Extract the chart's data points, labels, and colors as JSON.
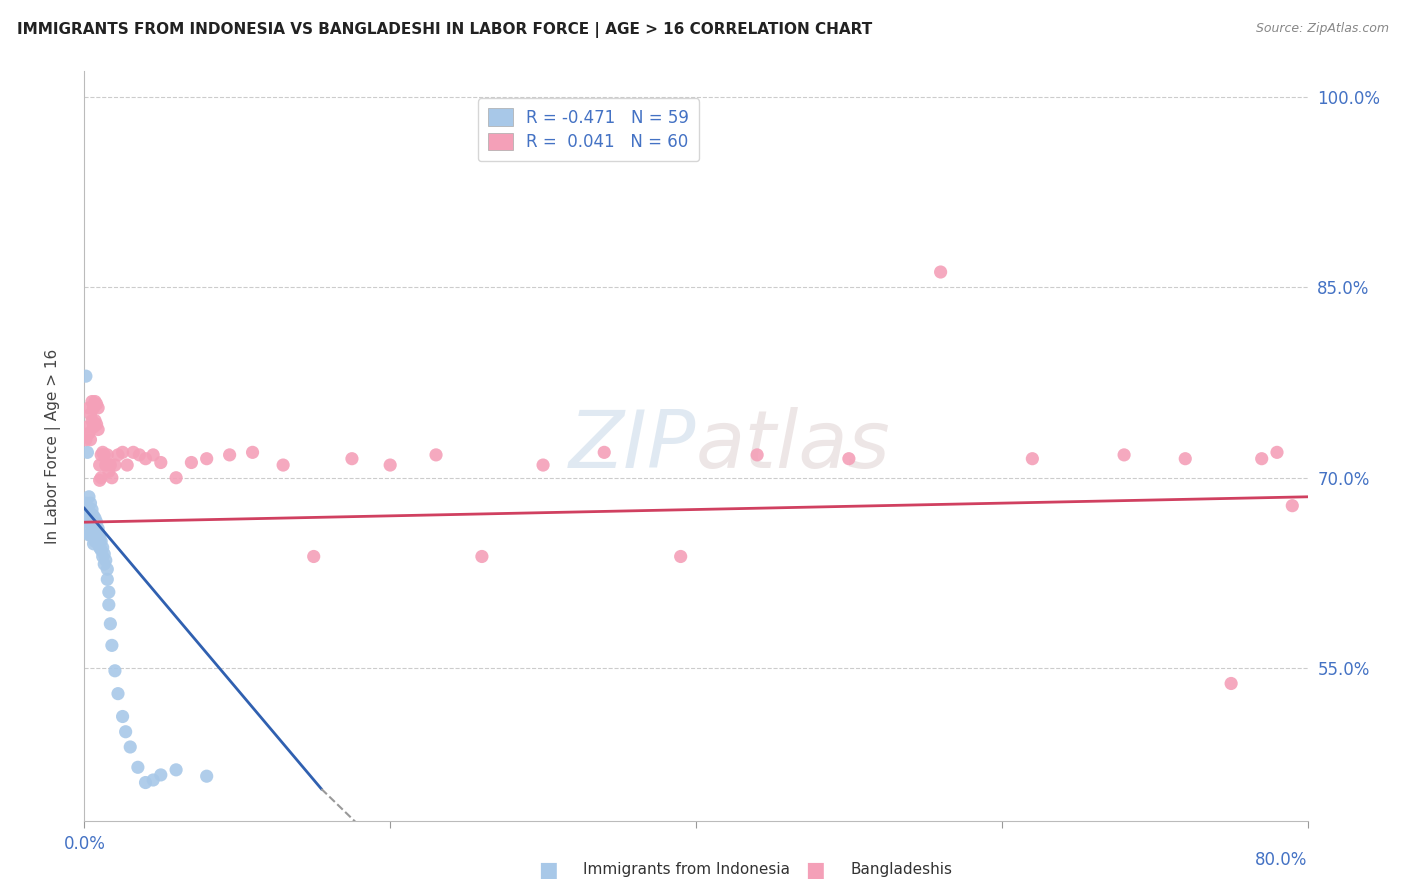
{
  "title": "IMMIGRANTS FROM INDONESIA VS BANGLADESHI IN LABOR FORCE | AGE > 16 CORRELATION CHART",
  "source": "Source: ZipAtlas.com",
  "ylabel": "In Labor Force | Age > 16",
  "legend_label_1": "Immigrants from Indonesia",
  "legend_label_2": "Bangladeshis",
  "R1": -0.471,
  "N1": 59,
  "R2": 0.041,
  "N2": 60,
  "color1": "#a8c8e8",
  "color1_line": "#3060b0",
  "color2": "#f4a0b8",
  "color2_line": "#d04060",
  "xmin": 0.0,
  "xmax": 0.8,
  "ymin": 0.43,
  "ymax": 1.02,
  "yticks": [
    0.55,
    0.7,
    0.85,
    1.0
  ],
  "ytick_labels": [
    "55.0%",
    "70.0%",
    "85.0%",
    "100.0%"
  ],
  "grid_color": "#cccccc",
  "background_color": "#ffffff",
  "watermark_color": "#d8e4f0",
  "indo_x": [
    0.001,
    0.001,
    0.002,
    0.002,
    0.002,
    0.003,
    0.003,
    0.003,
    0.003,
    0.004,
    0.004,
    0.004,
    0.004,
    0.005,
    0.005,
    0.005,
    0.005,
    0.006,
    0.006,
    0.006,
    0.006,
    0.006,
    0.007,
    0.007,
    0.007,
    0.007,
    0.008,
    0.008,
    0.008,
    0.009,
    0.009,
    0.009,
    0.01,
    0.01,
    0.01,
    0.011,
    0.011,
    0.012,
    0.012,
    0.013,
    0.013,
    0.014,
    0.015,
    0.015,
    0.016,
    0.016,
    0.017,
    0.018,
    0.02,
    0.022,
    0.025,
    0.027,
    0.03,
    0.035,
    0.04,
    0.045,
    0.05,
    0.06,
    0.08
  ],
  "indo_y": [
    0.78,
    0.68,
    0.72,
    0.67,
    0.66,
    0.685,
    0.67,
    0.665,
    0.655,
    0.68,
    0.672,
    0.665,
    0.655,
    0.675,
    0.668,
    0.662,
    0.655,
    0.67,
    0.665,
    0.66,
    0.655,
    0.648,
    0.668,
    0.663,
    0.658,
    0.65,
    0.665,
    0.658,
    0.652,
    0.66,
    0.655,
    0.648,
    0.655,
    0.65,
    0.645,
    0.65,
    0.643,
    0.645,
    0.638,
    0.64,
    0.632,
    0.635,
    0.628,
    0.62,
    0.61,
    0.6,
    0.585,
    0.568,
    0.548,
    0.53,
    0.512,
    0.5,
    0.488,
    0.472,
    0.46,
    0.462,
    0.466,
    0.47,
    0.465
  ],
  "bang_x": [
    0.001,
    0.002,
    0.003,
    0.003,
    0.004,
    0.004,
    0.005,
    0.005,
    0.006,
    0.006,
    0.007,
    0.007,
    0.008,
    0.008,
    0.009,
    0.009,
    0.01,
    0.01,
    0.011,
    0.011,
    0.012,
    0.013,
    0.014,
    0.015,
    0.016,
    0.017,
    0.018,
    0.02,
    0.022,
    0.025,
    0.028,
    0.032,
    0.036,
    0.04,
    0.045,
    0.05,
    0.06,
    0.07,
    0.08,
    0.095,
    0.11,
    0.13,
    0.15,
    0.175,
    0.2,
    0.23,
    0.26,
    0.3,
    0.34,
    0.39,
    0.44,
    0.5,
    0.56,
    0.62,
    0.68,
    0.72,
    0.75,
    0.77,
    0.78,
    0.79
  ],
  "bang_y": [
    0.73,
    0.74,
    0.755,
    0.735,
    0.75,
    0.73,
    0.76,
    0.745,
    0.755,
    0.74,
    0.76,
    0.745,
    0.758,
    0.742,
    0.755,
    0.738,
    0.71,
    0.698,
    0.718,
    0.7,
    0.72,
    0.718,
    0.71,
    0.718,
    0.705,
    0.71,
    0.7,
    0.71,
    0.718,
    0.72,
    0.71,
    0.72,
    0.718,
    0.715,
    0.718,
    0.712,
    0.7,
    0.712,
    0.715,
    0.718,
    0.72,
    0.71,
    0.638,
    0.715,
    0.71,
    0.718,
    0.638,
    0.71,
    0.72,
    0.638,
    0.718,
    0.715,
    0.862,
    0.715,
    0.718,
    0.715,
    0.538,
    0.715,
    0.72,
    0.678
  ]
}
